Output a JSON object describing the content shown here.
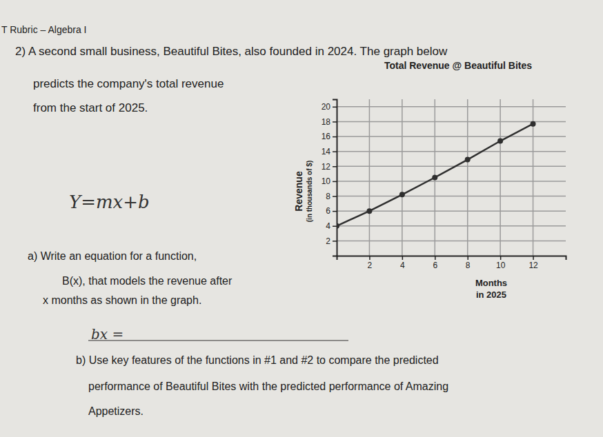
{
  "header": "T Rubric – Algebra I",
  "question": {
    "lines": [
      "2) A second small business, Beautiful Bites, also founded in 2024. The graph below",
      "predicts the company's total revenue",
      "from the start of 2025."
    ]
  },
  "handwriting": [
    "Y=mx+b",
    "bx ="
  ],
  "part_a": {
    "lines": [
      "a) Write an equation for a function,",
      "B(x), that models the revenue after",
      "x months as shown in the graph."
    ]
  },
  "part_b": {
    "lines": [
      "b) Use key features of the functions in #1 and #2 to compare the predicted",
      "performance of Beautiful Bites with the predicted performance of Amazing",
      "Appetizers."
    ]
  },
  "chart_data": {
    "type": "line",
    "title": "Total Revenue @ Beautiful Bites",
    "x_label": [
      "Months",
      "in 2025"
    ],
    "y_label": [
      "Revenue",
      "(in thousands of $)"
    ],
    "x": [
      0,
      2,
      4,
      6,
      8,
      10,
      12
    ],
    "values": [
      4,
      6,
      8.2,
      10.5,
      12.9,
      15.4,
      17.7
    ],
    "color": "#2f2f2f",
    "marker": "circle",
    "xlim": [
      0,
      14
    ],
    "ylim": [
      0,
      21
    ],
    "xticks": [
      2,
      4,
      6,
      8,
      10,
      12
    ],
    "yticks": [
      2,
      4,
      6,
      8,
      10,
      12,
      14,
      16,
      18,
      20
    ],
    "grid": true
  }
}
